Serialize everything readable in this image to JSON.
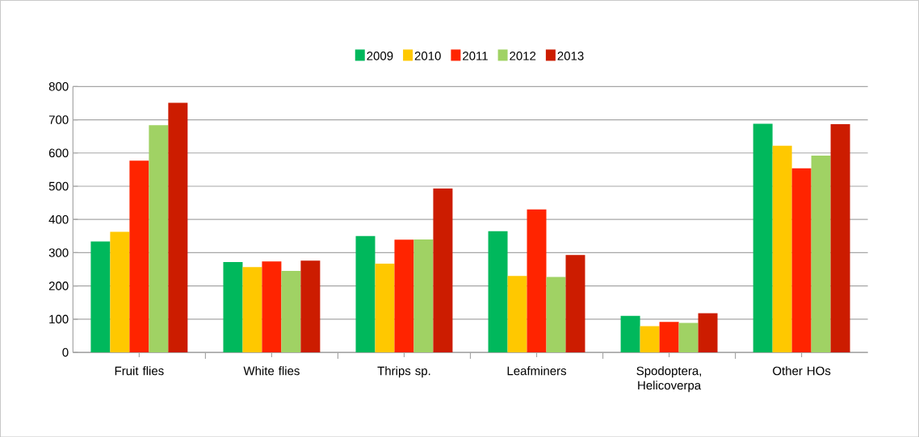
{
  "chart_data": {
    "type": "bar",
    "categories": [
      "Fruit flies",
      "White flies",
      "Thrips sp.",
      "Leafminers",
      "Spodoptera, Helicoverpa",
      "Other HOs"
    ],
    "series": [
      {
        "name": "2009",
        "color": "#00b85c",
        "values": [
          334,
          272,
          350,
          365,
          110,
          688
        ]
      },
      {
        "name": "2010",
        "color": "#ffc800",
        "values": [
          363,
          257,
          267,
          230,
          79,
          622
        ]
      },
      {
        "name": "2011",
        "color": "#ff2400",
        "values": [
          577,
          274,
          339,
          430,
          92,
          554
        ]
      },
      {
        "name": "2012",
        "color": "#a0d264",
        "values": [
          684,
          245,
          340,
          227,
          89,
          592
        ]
      },
      {
        "name": "2013",
        "color": "#cc1c00",
        "values": [
          751,
          276,
          493,
          293,
          118,
          687
        ]
      }
    ],
    "ylim": [
      0,
      800
    ],
    "yticks": [
      0,
      100,
      200,
      300,
      400,
      500,
      600,
      700,
      800
    ],
    "grid": "y",
    "legend": "top"
  }
}
